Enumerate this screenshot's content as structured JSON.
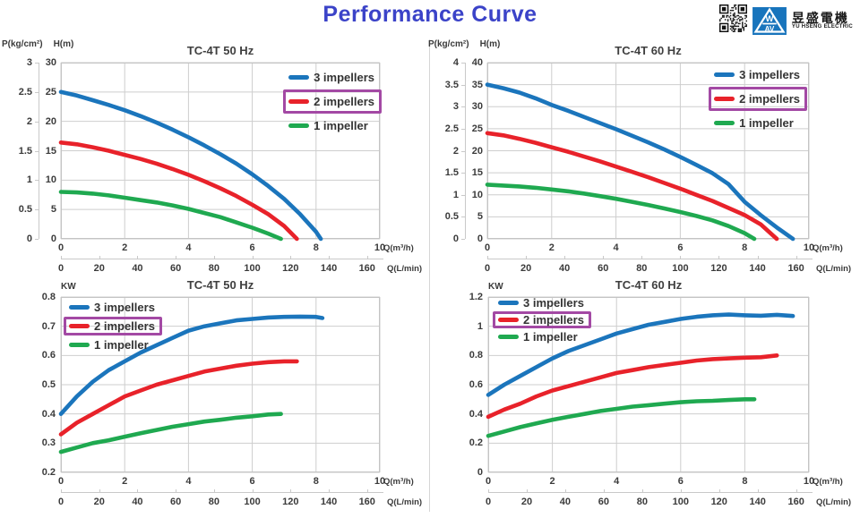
{
  "header": {
    "title": "Performance Curve",
    "logo": {
      "qr": "qr-code",
      "mark_top": "W",
      "mark_bottom": "AV",
      "company_zh": "昱盛電機",
      "company_en": "YU HSENG ELECTRIC"
    }
  },
  "colors": {
    "page_title": "#3B43C8",
    "highlight": "#A349A4",
    "grid": "#CECECE",
    "plot_border": "#C4C4C4",
    "axis_text": "#3B3B3B",
    "logo_blue": "#1874BC"
  },
  "legend": {
    "items": [
      {
        "label": "3 impellers",
        "color": "#1B75BC",
        "highlight": false
      },
      {
        "label": "2 impellers",
        "color": "#E8222A",
        "highlight": true
      },
      {
        "label": "1 impeller",
        "color": "#1FA950",
        "highlight": false
      }
    ]
  },
  "chart_data": [
    {
      "id": "head-50hz",
      "type": "line",
      "title": "TC-4T 50 Hz",
      "y_axes": [
        {
          "label": "P(kg/cm²)",
          "min": 0,
          "max": 3,
          "step": 0.5
        },
        {
          "label": "H(m)",
          "min": 0,
          "max": 30,
          "step": 5
        }
      ],
      "x_axis": {
        "label": "Q(m³/h)",
        "min": 0,
        "max": 10,
        "step": 2
      },
      "x_axis2": {
        "label": "Q(L/min)",
        "min": 0,
        "max": 160,
        "step": 20,
        "per_primary": 16.6667
      },
      "grid": true,
      "legend_position": "top-right",
      "series": [
        {
          "name": "3 impellers",
          "points": [
            [
              0,
              25
            ],
            [
              0.5,
              24.4
            ],
            [
              1,
              23.6
            ],
            [
              1.5,
              22.8
            ],
            [
              2,
              21.9
            ],
            [
              2.5,
              20.9
            ],
            [
              3,
              19.8
            ],
            [
              3.5,
              18.6
            ],
            [
              4,
              17.3
            ],
            [
              4.5,
              15.9
            ],
            [
              5,
              14.4
            ],
            [
              5.5,
              12.8
            ],
            [
              6,
              11.0
            ],
            [
              6.5,
              9.0
            ],
            [
              7,
              6.8
            ],
            [
              7.5,
              4.2
            ],
            [
              8,
              1.2
            ],
            [
              8.15,
              0
            ]
          ]
        },
        {
          "name": "2 impellers",
          "points": [
            [
              0,
              16.4
            ],
            [
              0.5,
              16.1
            ],
            [
              1,
              15.6
            ],
            [
              1.5,
              15.0
            ],
            [
              2,
              14.3
            ],
            [
              2.5,
              13.6
            ],
            [
              3,
              12.8
            ],
            [
              3.5,
              11.9
            ],
            [
              4,
              10.9
            ],
            [
              4.5,
              9.8
            ],
            [
              5,
              8.6
            ],
            [
              5.5,
              7.3
            ],
            [
              6,
              5.8
            ],
            [
              6.5,
              4.2
            ],
            [
              7,
              2.2
            ],
            [
              7.4,
              0
            ]
          ]
        },
        {
          "name": "1 impeller",
          "points": [
            [
              0,
              8
            ],
            [
              0.5,
              7.9
            ],
            [
              1,
              7.7
            ],
            [
              1.5,
              7.4
            ],
            [
              2,
              7.0
            ],
            [
              2.5,
              6.6
            ],
            [
              3,
              6.2
            ],
            [
              3.5,
              5.7
            ],
            [
              4,
              5.1
            ],
            [
              4.5,
              4.4
            ],
            [
              5,
              3.7
            ],
            [
              5.5,
              2.8
            ],
            [
              6,
              1.9
            ],
            [
              6.5,
              0.9
            ],
            [
              6.9,
              0
            ]
          ]
        }
      ]
    },
    {
      "id": "head-60hz",
      "type": "line",
      "title": "TC-4T 60 Hz",
      "y_axes": [
        {
          "label": "P(kg/cm²)",
          "min": 0,
          "max": 4,
          "step": 0.5
        },
        {
          "label": "H(m)",
          "min": 0,
          "max": 40,
          "step": 5
        }
      ],
      "x_axis": {
        "label": "Q(m³/h)",
        "min": 0,
        "max": 10,
        "step": 2
      },
      "x_axis2": {
        "label": "Q(L/min)",
        "min": 0,
        "max": 160,
        "step": 20,
        "per_primary": 16.6667
      },
      "grid": true,
      "legend_position": "top-right",
      "series": [
        {
          "name": "3 impellers",
          "points": [
            [
              0,
              35
            ],
            [
              0.5,
              34.2
            ],
            [
              1,
              33.2
            ],
            [
              1.5,
              31.9
            ],
            [
              2,
              30.4
            ],
            [
              2.5,
              29.1
            ],
            [
              3,
              27.7
            ],
            [
              3.5,
              26.3
            ],
            [
              4,
              24.9
            ],
            [
              4.5,
              23.4
            ],
            [
              5,
              21.9
            ],
            [
              5.5,
              20.3
            ],
            [
              6,
              18.6
            ],
            [
              6.5,
              16.8
            ],
            [
              7,
              14.9
            ],
            [
              7.5,
              12.4
            ],
            [
              8,
              8.4
            ],
            [
              8.5,
              5.4
            ],
            [
              9,
              2.6
            ],
            [
              9.5,
              0
            ]
          ]
        },
        {
          "name": "2 impellers",
          "points": [
            [
              0,
              24
            ],
            [
              0.5,
              23.5
            ],
            [
              1,
              22.7
            ],
            [
              1.5,
              21.8
            ],
            [
              2,
              20.8
            ],
            [
              2.5,
              19.8
            ],
            [
              3,
              18.7
            ],
            [
              3.5,
              17.6
            ],
            [
              4,
              16.4
            ],
            [
              4.5,
              15.2
            ],
            [
              5,
              14.0
            ],
            [
              5.5,
              12.7
            ],
            [
              6,
              11.4
            ],
            [
              6.5,
              10.0
            ],
            [
              7,
              8.6
            ],
            [
              7.5,
              7.0
            ],
            [
              8,
              5.4
            ],
            [
              8.5,
              3.3
            ],
            [
              9,
              0
            ]
          ]
        },
        {
          "name": "1 impeller",
          "points": [
            [
              0,
              12.3
            ],
            [
              0.5,
              12.1
            ],
            [
              1,
              11.9
            ],
            [
              1.5,
              11.6
            ],
            [
              2,
              11.2
            ],
            [
              2.5,
              10.8
            ],
            [
              3,
              10.3
            ],
            [
              3.5,
              9.7
            ],
            [
              4,
              9.1
            ],
            [
              4.5,
              8.4
            ],
            [
              5,
              7.7
            ],
            [
              5.5,
              6.9
            ],
            [
              6,
              6.1
            ],
            [
              6.5,
              5.2
            ],
            [
              7,
              4.2
            ],
            [
              7.5,
              2.9
            ],
            [
              8,
              1.3
            ],
            [
              8.3,
              0
            ]
          ]
        }
      ]
    },
    {
      "id": "power-50hz",
      "type": "line",
      "title": "TC-4T 50 Hz",
      "y_axes": [
        {
          "label": "KW",
          "min": 0.2,
          "max": 0.8,
          "step": 0.1
        }
      ],
      "x_axis": {
        "label": "Q(m³/h)",
        "min": 0,
        "max": 10,
        "step": 2
      },
      "x_axis2": {
        "label": "Q(L/min)",
        "min": 0,
        "max": 160,
        "step": 20,
        "per_primary": 16.6667
      },
      "grid": true,
      "legend_position": "top-left",
      "series": [
        {
          "name": "3 impellers",
          "points": [
            [
              0,
              0.4
            ],
            [
              0.5,
              0.46
            ],
            [
              1,
              0.51
            ],
            [
              1.5,
              0.55
            ],
            [
              2,
              0.58
            ],
            [
              2.5,
              0.61
            ],
            [
              3,
              0.635
            ],
            [
              3.5,
              0.66
            ],
            [
              4,
              0.685
            ],
            [
              4.5,
              0.7
            ],
            [
              5,
              0.71
            ],
            [
              5.5,
              0.72
            ],
            [
              6,
              0.725
            ],
            [
              6.5,
              0.73
            ],
            [
              7,
              0.732
            ],
            [
              7.5,
              0.733
            ],
            [
              8,
              0.732
            ],
            [
              8.2,
              0.728
            ]
          ]
        },
        {
          "name": "2 impellers",
          "points": [
            [
              0,
              0.33
            ],
            [
              0.5,
              0.37
            ],
            [
              1,
              0.4
            ],
            [
              1.5,
              0.43
            ],
            [
              2,
              0.46
            ],
            [
              2.5,
              0.48
            ],
            [
              3,
              0.5
            ],
            [
              3.5,
              0.515
            ],
            [
              4,
              0.53
            ],
            [
              4.5,
              0.545
            ],
            [
              5,
              0.555
            ],
            [
              5.5,
              0.565
            ],
            [
              6,
              0.572
            ],
            [
              6.5,
              0.577
            ],
            [
              7,
              0.58
            ],
            [
              7.4,
              0.58
            ]
          ]
        },
        {
          "name": "1 impeller",
          "points": [
            [
              0,
              0.27
            ],
            [
              0.5,
              0.285
            ],
            [
              1,
              0.3
            ],
            [
              1.5,
              0.31
            ],
            [
              2,
              0.322
            ],
            [
              2.5,
              0.334
            ],
            [
              3,
              0.345
            ],
            [
              3.5,
              0.356
            ],
            [
              4,
              0.365
            ],
            [
              4.5,
              0.374
            ],
            [
              5,
              0.38
            ],
            [
              5.5,
              0.387
            ],
            [
              6,
              0.392
            ],
            [
              6.5,
              0.398
            ],
            [
              6.9,
              0.4
            ]
          ]
        }
      ]
    },
    {
      "id": "power-60hz",
      "type": "line",
      "title": "TC-4T 60 Hz",
      "y_axes": [
        {
          "label": "KW",
          "min": 0,
          "max": 1.2,
          "step": 0.2
        }
      ],
      "x_axis": {
        "label": "Q(m³/h)",
        "min": 0,
        "max": 10,
        "step": 2
      },
      "x_axis2": {
        "label": "Q(L/min)",
        "min": 0,
        "max": 160,
        "step": 20,
        "per_primary": 16.6667
      },
      "grid": true,
      "legend_position": "top-left",
      "series": [
        {
          "name": "3 impellers",
          "points": [
            [
              0,
              0.53
            ],
            [
              0.5,
              0.6
            ],
            [
              1,
              0.66
            ],
            [
              1.5,
              0.72
            ],
            [
              2,
              0.78
            ],
            [
              2.5,
              0.83
            ],
            [
              3,
              0.87
            ],
            [
              3.5,
              0.91
            ],
            [
              4,
              0.95
            ],
            [
              4.5,
              0.98
            ],
            [
              5,
              1.01
            ],
            [
              5.5,
              1.03
            ],
            [
              6,
              1.05
            ],
            [
              6.5,
              1.065
            ],
            [
              7,
              1.075
            ],
            [
              7.5,
              1.08
            ],
            [
              8,
              1.075
            ],
            [
              8.5,
              1.072
            ],
            [
              9,
              1.078
            ],
            [
              9.5,
              1.07
            ]
          ]
        },
        {
          "name": "2 impellers",
          "points": [
            [
              0,
              0.38
            ],
            [
              0.5,
              0.43
            ],
            [
              1,
              0.47
            ],
            [
              1.5,
              0.52
            ],
            [
              2,
              0.56
            ],
            [
              2.5,
              0.59
            ],
            [
              3,
              0.62
            ],
            [
              3.5,
              0.65
            ],
            [
              4,
              0.68
            ],
            [
              4.5,
              0.7
            ],
            [
              5,
              0.72
            ],
            [
              5.5,
              0.735
            ],
            [
              6,
              0.75
            ],
            [
              6.5,
              0.765
            ],
            [
              7,
              0.775
            ],
            [
              7.5,
              0.78
            ],
            [
              8,
              0.785
            ],
            [
              8.5,
              0.788
            ],
            [
              9,
              0.8
            ]
          ]
        },
        {
          "name": "1 impeller",
          "points": [
            [
              0,
              0.25
            ],
            [
              0.5,
              0.28
            ],
            [
              1,
              0.31
            ],
            [
              1.5,
              0.335
            ],
            [
              2,
              0.36
            ],
            [
              2.5,
              0.38
            ],
            [
              3,
              0.4
            ],
            [
              3.5,
              0.42
            ],
            [
              4,
              0.435
            ],
            [
              4.5,
              0.45
            ],
            [
              5,
              0.46
            ],
            [
              5.5,
              0.47
            ],
            [
              6,
              0.48
            ],
            [
              6.5,
              0.487
            ],
            [
              7,
              0.49
            ],
            [
              7.5,
              0.495
            ],
            [
              8,
              0.5
            ],
            [
              8.3,
              0.5
            ]
          ]
        }
      ]
    }
  ]
}
